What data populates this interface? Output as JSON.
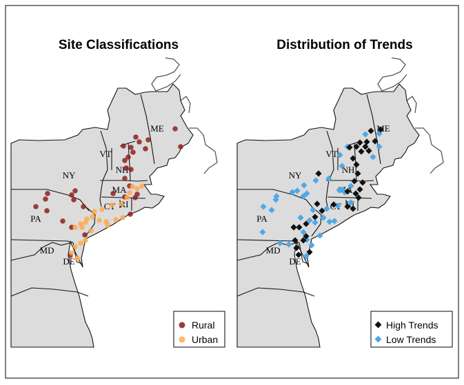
{
  "panels": [
    {
      "title": "Site Classifications",
      "legend": [
        {
          "label": "Rural",
          "color": "#8B1A1A",
          "shape": "circle"
        },
        {
          "label": "Urban",
          "color": "#FFA94D",
          "shape": "circle"
        }
      ]
    },
    {
      "title": "Distribution of Trends",
      "legend": [
        {
          "label": "High Trends",
          "color": "#111111",
          "shape": "diamond"
        },
        {
          "label": "Low Trends",
          "color": "#4FA8E8",
          "shape": "diamond"
        }
      ]
    }
  ],
  "state_labels": [
    "ME",
    "VT",
    "NH",
    "NY",
    "MA",
    "CT",
    "RI",
    "PA",
    "MD",
    "DE"
  ],
  "colors": {
    "land": "#dcdcdc",
    "rural": "#8B1A1A",
    "urban": "#FFA94D",
    "high": "#111111",
    "low": "#4FA8E8"
  },
  "icons": {
    "circle_marker": "circle-icon",
    "diamond_marker": "diamond-icon"
  }
}
